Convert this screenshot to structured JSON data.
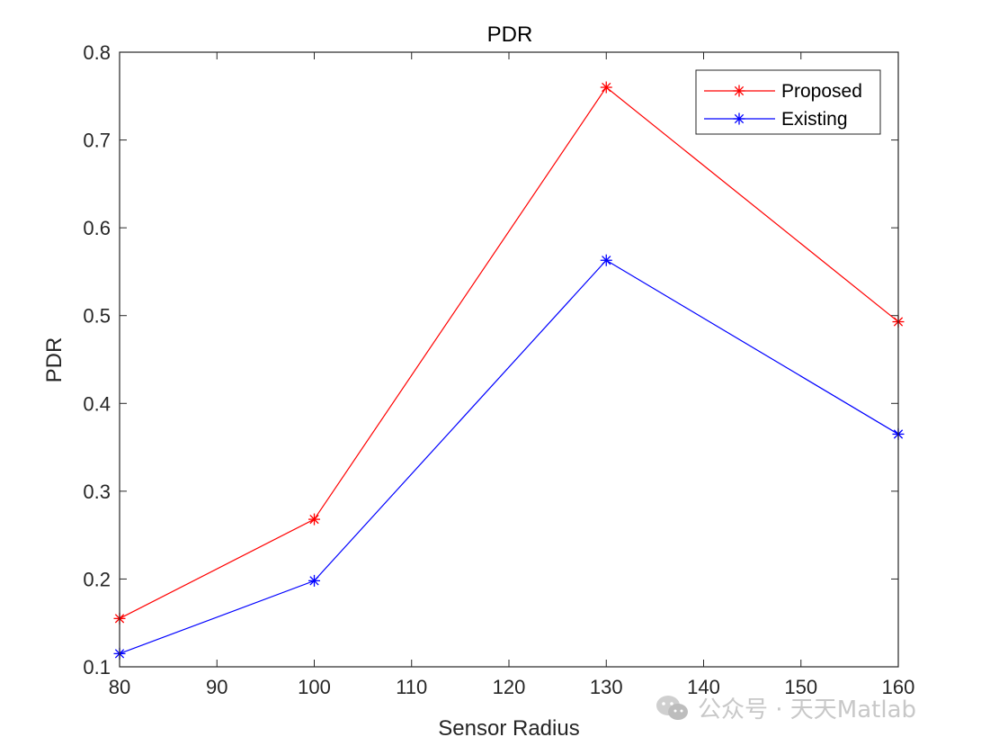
{
  "chart_data": {
    "type": "line",
    "title": "PDR",
    "xlabel": "Sensor Radius",
    "ylabel": "PDR",
    "xlim": [
      80,
      160
    ],
    "ylim": [
      0.1,
      0.8
    ],
    "xticks": [
      80,
      90,
      100,
      110,
      120,
      130,
      140,
      150,
      160
    ],
    "yticks": [
      0.1,
      0.2,
      0.3,
      0.4,
      0.5,
      0.6,
      0.7,
      0.8
    ],
    "xtick_labels": [
      "80",
      "90",
      "100",
      "110",
      "120",
      "130",
      "140",
      "150",
      "160"
    ],
    "ytick_labels": [
      "0.1",
      "0.2",
      "0.3",
      "0.4",
      "0.5",
      "0.6",
      "0.7",
      "0.8"
    ],
    "x": [
      80,
      100,
      130,
      160
    ],
    "series": [
      {
        "name": "Proposed",
        "values": [
          0.155,
          0.268,
          0.76,
          0.493
        ],
        "color": "#ff0000",
        "marker": "asterisk"
      },
      {
        "name": "Existing",
        "values": [
          0.115,
          0.198,
          0.563,
          0.365
        ],
        "color": "#0000ff",
        "marker": "asterisk"
      }
    ],
    "legend": "top-right",
    "grid": false
  },
  "watermark": {
    "text": "公众号 · 天天Matlab",
    "icon": "wechat-icon"
  }
}
